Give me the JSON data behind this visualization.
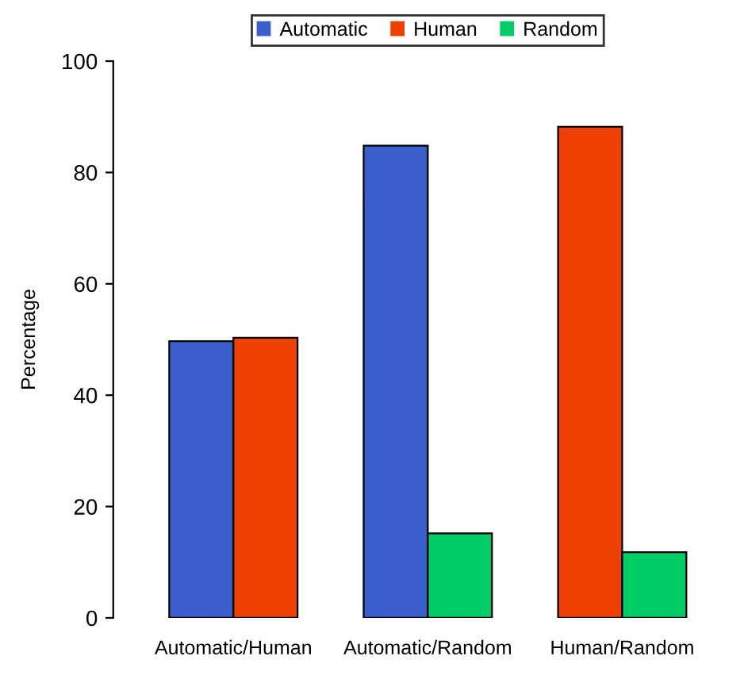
{
  "chart_data": {
    "type": "bar",
    "ylabel": "Percentage",
    "categories": [
      "Automatic/Human",
      "Automatic/Random",
      "Human/Random"
    ],
    "series": [
      {
        "name": "Automatic",
        "color": "#3a5fcd",
        "values": [
          49.7,
          84.8,
          null
        ]
      },
      {
        "name": "Human",
        "color": "#ee4000",
        "values": [
          50.3,
          null,
          88.2
        ]
      },
      {
        "name": "Random",
        "color": "#00cd66",
        "values": [
          null,
          15.2,
          11.8
        ]
      }
    ],
    "ylim": [
      0,
      100
    ],
    "yticks": [
      0,
      20,
      40,
      60,
      80,
      100
    ],
    "grid": false,
    "legend": "top"
  }
}
